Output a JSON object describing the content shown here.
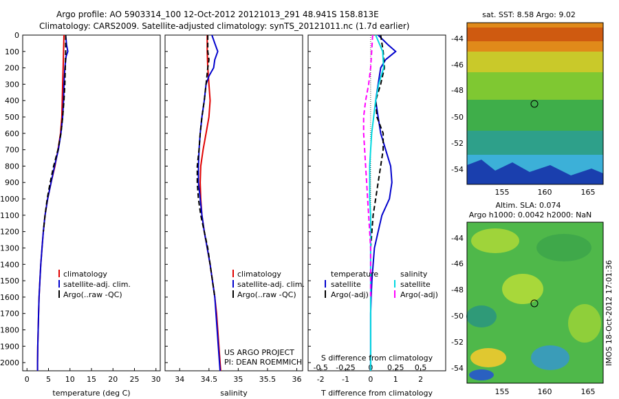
{
  "header": {
    "line1": "Argo profile: AO 5903314_100 12-Oct-2012 20121013_291 48.941S 158.813E",
    "line2": "Climatology: CARS2009. Satellite-adjusted climatology: synTS_20121011.nc (1.7d earlier)"
  },
  "credit": {
    "line1": "US ARGO PROJECT",
    "line2": "PI: DEAN ROEMMICH"
  },
  "watermark": "IMOS 18-Oct-2012 17:01:36",
  "colors": {
    "climatology": "#e00000",
    "satellite": "#0000cc",
    "argo": "#000000",
    "salinity_sat": "#00d8e0",
    "salinity_argo": "#ff00ff"
  },
  "maps": {
    "sst": {
      "title": "sat. SST: 8.58 Argo: 9.02",
      "lon_ticks": [
        "155",
        "160",
        "165"
      ],
      "lat_ticks": [
        "-44",
        "-46",
        "-48",
        "-50",
        "-52",
        "-54"
      ],
      "marker": {
        "lon": 158.813,
        "lat": -48.941
      }
    },
    "sla": {
      "title1": "Altim. SLA: 0.074",
      "title2": "Argo h1000: 0.0042 h2000: NaN",
      "lon_ticks": [
        "155",
        "160",
        "165"
      ],
      "lat_ticks": [
        "-44",
        "-46",
        "-48",
        "-50",
        "-52",
        "-54"
      ],
      "marker": {
        "lon": 158.813,
        "lat": -48.941
      }
    }
  },
  "chart_data": [
    {
      "type": "line",
      "name": "temperature",
      "xlabel": "temperature (deg C)",
      "xlim": [
        -1,
        31
      ],
      "ylim": [
        2050,
        0
      ],
      "x_ticks": [
        "0",
        "5",
        "10",
        "15",
        "20",
        "25",
        "30"
      ],
      "y_ticks": [
        "0",
        "100",
        "200",
        "300",
        "400",
        "500",
        "600",
        "700",
        "800",
        "900",
        "1000",
        "1100",
        "1200",
        "1300",
        "1400",
        "1500",
        "1600",
        "1700",
        "1800",
        "1900",
        "2000"
      ],
      "legend": [
        "climatology",
        "satellite-adj. clim.",
        "Argo(..raw -QC)"
      ],
      "series": [
        {
          "name": "climatology",
          "depth": [
            0,
            100,
            200,
            300,
            400,
            500,
            600,
            700,
            800,
            900,
            1000,
            1100,
            1200,
            1300,
            1400,
            1500,
            1600,
            1700,
            1800,
            1900,
            2000,
            2050
          ],
          "values": [
            8.6,
            8.5,
            8.4,
            8.3,
            8.2,
            8.1,
            7.8,
            7.2,
            6.5,
            5.6,
            4.8,
            4.2,
            3.8,
            3.5,
            3.2,
            3.0,
            2.8,
            2.7,
            2.6,
            2.5,
            2.45,
            2.45
          ]
        },
        {
          "name": "satellite-adj. clim.",
          "depth": [
            0,
            60,
            100,
            130,
            200,
            300,
            400,
            500,
            600,
            700,
            800,
            900,
            1000,
            1100,
            1200,
            1300,
            1400,
            1500,
            1600,
            1700,
            1800,
            1900,
            2000,
            2050
          ],
          "values": [
            9.0,
            9.2,
            9.5,
            9.1,
            8.8,
            8.6,
            8.5,
            8.3,
            7.9,
            7.3,
            6.4,
            5.6,
            4.8,
            4.2,
            3.8,
            3.5,
            3.2,
            3.0,
            2.8,
            2.7,
            2.6,
            2.5,
            2.45,
            2.45
          ]
        },
        {
          "name": "Argo(..raw -QC)",
          "depth": [
            0,
            100,
            200,
            300,
            400,
            500,
            600,
            700,
            800,
            900,
            1000,
            1100,
            1200
          ],
          "values": [
            9.0,
            9.0,
            8.9,
            8.8,
            8.6,
            8.3,
            7.9,
            7.2,
            6.2,
            5.4,
            4.7,
            4.2,
            3.8
          ]
        }
      ]
    },
    {
      "type": "line",
      "name": "salinity",
      "xlabel": "salinity",
      "xlim": [
        33.75,
        36.1
      ],
      "ylim": [
        2050,
        0
      ],
      "x_ticks": [
        "34",
        "34.5",
        "35",
        "35.5",
        "36"
      ],
      "legend": [
        "climatology",
        "satellite-adj. clim.",
        "Argo(..raw -QC)"
      ],
      "series": [
        {
          "name": "climatology",
          "depth": [
            0,
            100,
            200,
            300,
            400,
            500,
            600,
            700,
            800,
            900,
            1000,
            1100,
            1200,
            1300,
            1400,
            1500,
            1600,
            1700,
            1800,
            1900,
            2000,
            2050
          ],
          "values": [
            34.47,
            34.47,
            34.48,
            34.5,
            34.52,
            34.5,
            34.45,
            34.4,
            34.36,
            34.35,
            34.36,
            34.38,
            34.42,
            34.47,
            34.52,
            34.56,
            34.6,
            34.63,
            34.65,
            34.67,
            34.69,
            34.7
          ]
        },
        {
          "name": "satellite-adj. clim.",
          "depth": [
            0,
            50,
            100,
            150,
            200,
            250,
            300,
            400,
            500,
            600,
            700,
            800,
            900,
            1000,
            1100,
            1200,
            1300,
            1400,
            1500,
            1600,
            1700,
            1800,
            1900,
            2000,
            2050
          ],
          "values": [
            34.55,
            34.6,
            34.65,
            34.6,
            34.58,
            34.5,
            34.45,
            34.42,
            34.38,
            34.35,
            34.33,
            34.32,
            34.32,
            34.35,
            34.38,
            34.42,
            34.47,
            34.52,
            34.56,
            34.6,
            34.62,
            34.64,
            34.66,
            34.68,
            34.69
          ]
        },
        {
          "name": "Argo(..raw -QC)",
          "depth": [
            0,
            100,
            150,
            200,
            300,
            400,
            500,
            600,
            700,
            800,
            900,
            1000,
            1100,
            1200,
            1300,
            1400,
            1500,
            1600
          ],
          "values": [
            34.48,
            34.48,
            34.5,
            34.48,
            34.45,
            34.42,
            34.38,
            34.35,
            34.33,
            34.3,
            34.3,
            34.32,
            34.36,
            34.42,
            34.48,
            34.52,
            34.56,
            34.6
          ]
        }
      ]
    },
    {
      "type": "line",
      "name": "difference",
      "xlabel": "T difference from climatology",
      "x2label": "S difference from climatology",
      "xlim": [
        -2.5,
        3.0
      ],
      "x2lim": [
        -0.625,
        0.75
      ],
      "ylim": [
        2050,
        0
      ],
      "x_ticks": [
        "-2",
        "-1",
        "0",
        "1",
        "2"
      ],
      "x2_ticks": [
        "-0.5",
        "-0.25",
        "0",
        "0.25",
        "0.5"
      ],
      "legend": {
        "temperature_title": "temperature",
        "salinity_title": "salinity",
        "temperature_items": [
          "satellite",
          "Argo(-adj)"
        ],
        "salinity_items": [
          "satellite",
          "Argo(-adj)"
        ]
      },
      "series": [
        {
          "name": "temperature satellite",
          "depth": [
            0,
            30,
            60,
            100,
            150,
            200,
            300,
            400,
            500,
            600,
            700,
            800,
            900,
            1000,
            1100,
            1200,
            1300,
            1400,
            1500,
            1600,
            1700,
            1800,
            1900,
            2000,
            2050
          ],
          "values": [
            0.3,
            0.5,
            0.7,
            1.0,
            0.6,
            0.4,
            0.3,
            0.2,
            0.3,
            0.4,
            0.6,
            0.8,
            0.85,
            0.75,
            0.45,
            0.3,
            0.15,
            0.1,
            0.05,
            0.02,
            0.0,
            0.0,
            0.0,
            0.0,
            0.0
          ]
        },
        {
          "name": "temperature Argo(-adj)",
          "depth": [
            0,
            100,
            200,
            300,
            400,
            500,
            600,
            700,
            800,
            900,
            1000,
            1100,
            1200,
            1300
          ],
          "values": [
            0.4,
            0.5,
            0.55,
            0.4,
            0.2,
            0.25,
            0.5,
            0.5,
            0.4,
            0.3,
            0.2,
            0.1,
            0.05,
            0.0
          ]
        },
        {
          "name": "salinity satellite",
          "depth": [
            0,
            100,
            200,
            300,
            400,
            500,
            600,
            700,
            800,
            900,
            1000,
            1100,
            1200,
            1300,
            1400,
            1500,
            1600,
            1700,
            1800,
            1900,
            2000,
            2050
          ],
          "values": [
            0.05,
            0.12,
            0.13,
            0.08,
            0.05,
            0.03,
            0.01,
            0.0,
            -0.01,
            -0.01,
            -0.01,
            0.0,
            0.0,
            0.0,
            0.0,
            0.0,
            0.0,
            0.0,
            0.0,
            0.0,
            0.0,
            0.0
          ]
        },
        {
          "name": "salinity Argo(-adj)",
          "depth": [
            0,
            100,
            200,
            300,
            400,
            500,
            600,
            700,
            800,
            900,
            1000,
            1100,
            1200,
            1300,
            1400,
            1500,
            1600
          ],
          "values": [
            0.02,
            0.01,
            0.0,
            -0.02,
            -0.05,
            -0.07,
            -0.07,
            -0.06,
            -0.05,
            -0.04,
            -0.03,
            -0.02,
            -0.01,
            0.0,
            0.0,
            0.0,
            0.0
          ]
        }
      ]
    }
  ]
}
